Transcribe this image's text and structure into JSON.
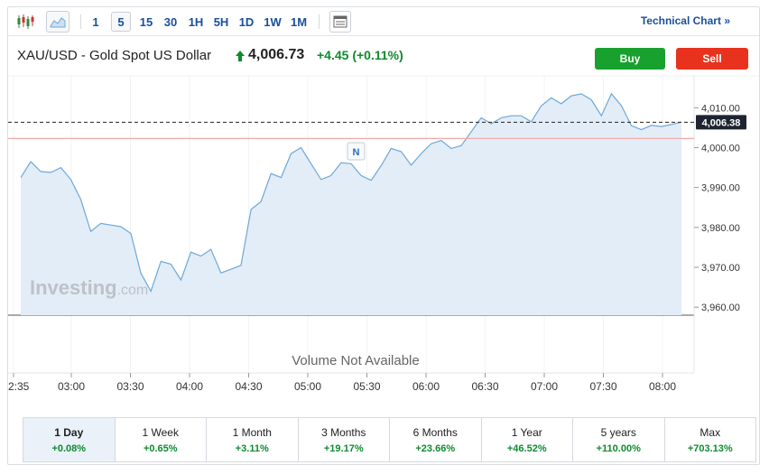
{
  "toolbar": {
    "intervals": [
      "1",
      "5",
      "15",
      "30",
      "1H",
      "5H",
      "1D",
      "1W",
      "1M"
    ],
    "active_interval": "5",
    "technical_link": "Technical Chart",
    "technical_link_icon": "»"
  },
  "header": {
    "title": "XAU/USD - Gold Spot US Dollar",
    "price": "4,006.73",
    "change": "+4.45",
    "change_pct": "(+0.11%)",
    "buy_label": "Buy",
    "sell_label": "Sell"
  },
  "colors": {
    "line": "#6fa8d8",
    "area_fill": "#e3edf7",
    "positive": "#0e8a2e",
    "buy": "#18a12e",
    "sell": "#e8321e",
    "prev_close_line": "#f2a9a9"
  },
  "chart_data": {
    "type": "area",
    "x_ticks": [
      "2:35",
      "03:00",
      "03:30",
      "04:00",
      "04:30",
      "05:00",
      "05:30",
      "06:00",
      "06:30",
      "07:00",
      "07:30",
      "08:00"
    ],
    "y_ticks": [
      "4,010.00",
      "4,000.00",
      "3,990.00",
      "3,980.00",
      "3,970.00",
      "3,960.00"
    ],
    "ylim": [
      3958,
      4018
    ],
    "last_price_label": "4,006.38",
    "last_price": 4006.38,
    "prev_close": 4002.3,
    "watermark": "Investing",
    "watermark_suffix": ".com",
    "news_marker": "N",
    "volume_note": "Volume Not Available",
    "series": [
      {
        "values": [
          3992.5,
          3996.5,
          3994,
          3993.8,
          3995,
          3992,
          3987,
          3979,
          3981,
          3980.6,
          3980.2,
          3978.5,
          3968.5,
          3964,
          3971.5,
          3970.8,
          3966.8,
          3973.8,
          3972.8,
          3974.5,
          3968.6,
          3969.5,
          3970.5,
          3984.5,
          3986.5,
          3993.5,
          3992.5,
          3998.5,
          4000,
          3996,
          3992,
          3993,
          3996.2,
          3996,
          3993,
          3991.8,
          3995.5,
          3999.8,
          3999,
          3995.6,
          3998.5,
          4001,
          4001.8,
          3999.8,
          4000.5,
          4004,
          4007.5,
          4006,
          4007.5,
          4008,
          4008,
          4006.5,
          4010.5,
          4012.5,
          4011,
          4013,
          4013.5,
          4012,
          4008,
          4013.5,
          4010.5,
          4005.5,
          4004.5,
          4005.6,
          4005.3,
          4005.8,
          4006.4
        ]
      }
    ]
  }
}
